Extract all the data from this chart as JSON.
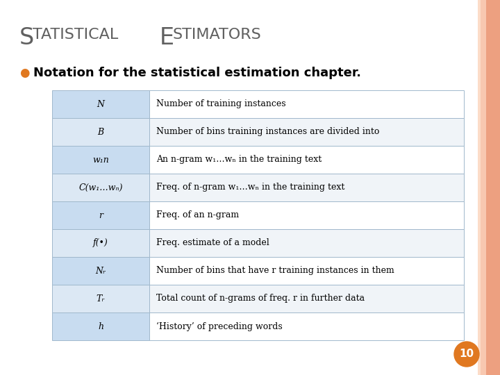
{
  "background_color": "#FFFFFF",
  "border_color_outer": "#F0B090",
  "border_color_inner": "#F8D0B8",
  "title_color": "#606060",
  "bullet_color": "#E07820",
  "subtitle": "Notation for the statistical estimation chapter.",
  "table_col1_bg_even": "#C8DCF0",
  "table_col1_bg_odd": "#DCE8F4",
  "table_col2_bg_even": "#FFFFFF",
  "table_col2_bg_odd": "#F0F4F8",
  "table_border_color": "#A0B8CC",
  "table_text_color": "#000000",
  "page_number": "10",
  "page_badge_color": "#E07820",
  "rows": [
    [
      "N",
      "Number of training instances"
    ],
    [
      "B",
      "Number of bins training instances are divided into"
    ],
    [
      "w₁n",
      "An n-gram w₁…wₙ in the training text"
    ],
    [
      "C(w₁…wₙ)",
      "Freq. of n-gram w₁…wₙ in the training text"
    ],
    [
      "r",
      "Freq. of an n-gram"
    ],
    [
      "f(•)",
      "Freq. estimate of a model"
    ],
    [
      "Nᵣ",
      "Number of bins that have r training instances in them"
    ],
    [
      "Tᵣ",
      "Total count of n-grams of freq. r in further data"
    ],
    [
      "h",
      "‘History’ of preceding words"
    ]
  ]
}
